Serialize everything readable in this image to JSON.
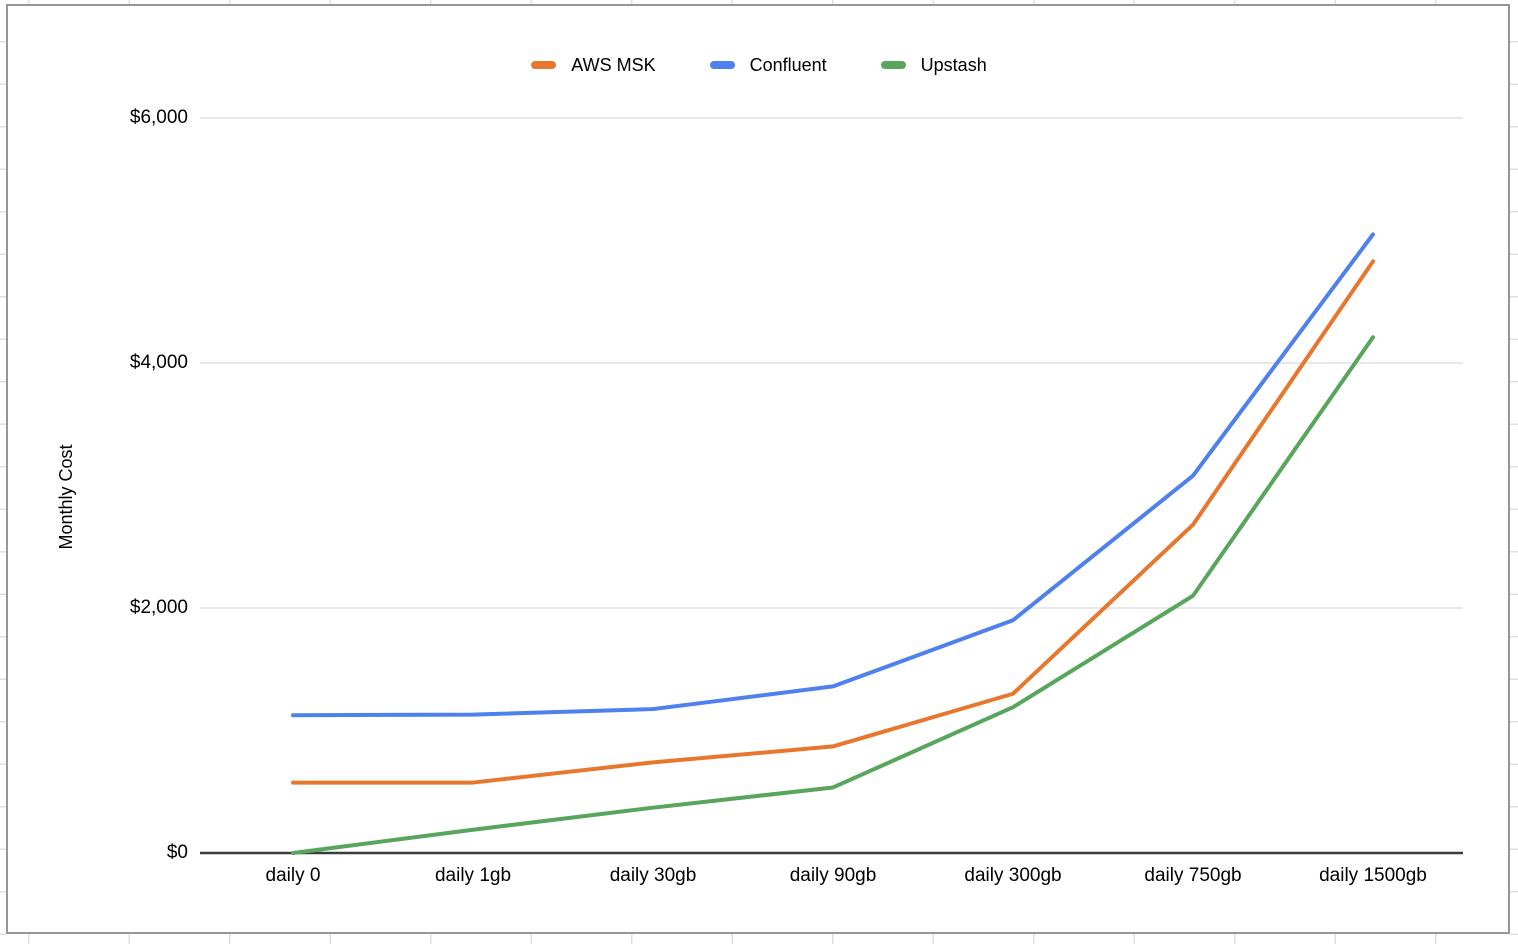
{
  "chart_data": {
    "type": "line",
    "ylabel": "Monthly Cost",
    "categories": [
      "daily 0",
      "daily 1gb",
      "daily 30gb",
      "daily 90gb",
      "daily 300gb",
      "daily 750gb",
      "daily 1500gb"
    ],
    "series": [
      {
        "name": "AWS MSK",
        "color": "#e8772d",
        "values": [
          575,
          575,
          740,
          870,
          1300,
          2680,
          4830
        ]
      },
      {
        "name": "Confluent",
        "color": "#4e80ee",
        "values": [
          1125,
          1130,
          1175,
          1360,
          1900,
          3080,
          5050
        ]
      },
      {
        "name": "Upstash",
        "color": "#58a55c",
        "values": [
          0,
          190,
          370,
          535,
          1190,
          2100,
          4210
        ]
      }
    ],
    "y_ticks": [
      {
        "label": "$6,000",
        "value": 6000
      },
      {
        "label": "$4,000",
        "value": 4000
      },
      {
        "label": "$2,000",
        "value": 2000
      },
      {
        "label": "$0",
        "value": 0
      }
    ],
    "ylim": [
      0,
      6000
    ],
    "legend_position": "top",
    "grid": "horizontal",
    "colors": {
      "gridline": "#d9d9d9",
      "axis_line": "#3a3a3a",
      "frame_border": "#969696",
      "text": "#000000"
    }
  }
}
